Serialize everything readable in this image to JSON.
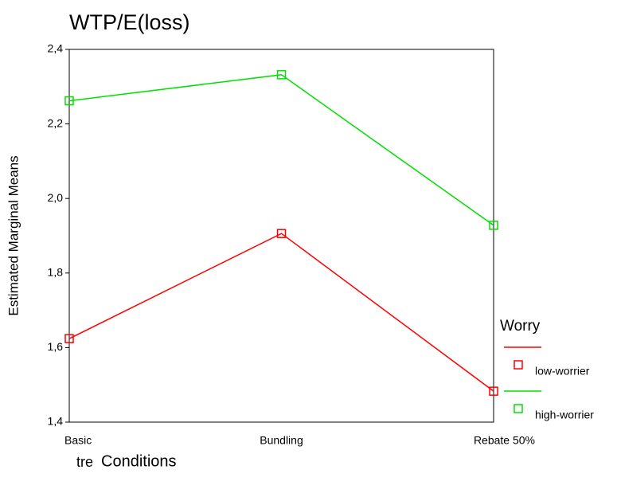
{
  "chart_data": {
    "type": "line",
    "title": "WTP/E(loss)",
    "x_label": "Conditions",
    "truncated_label": "tre",
    "y_label": "Estimated Marginal Means",
    "categories": [
      "Basic",
      "Bundling",
      "Rebate 50%"
    ],
    "series": [
      {
        "name": "low-worrier",
        "color": "#ff0000",
        "values": [
          1.624,
          1.906,
          1.483
        ]
      },
      {
        "name": "high-worrier",
        "color": "#00e000",
        "values": [
          2.262,
          2.332,
          1.928
        ]
      }
    ],
    "legend_title": "Worry",
    "ylim": [
      1.4,
      2.4
    ],
    "yticks": [
      {
        "value": 1.4,
        "label": "1,4"
      },
      {
        "value": 1.6,
        "label": "1,6"
      },
      {
        "value": 1.8,
        "label": "1,8"
      },
      {
        "value": 2.0,
        "label": "2,0"
      },
      {
        "value": 2.2,
        "label": "2,2"
      },
      {
        "value": 2.4,
        "label": "2,4"
      }
    ],
    "grid": false
  }
}
